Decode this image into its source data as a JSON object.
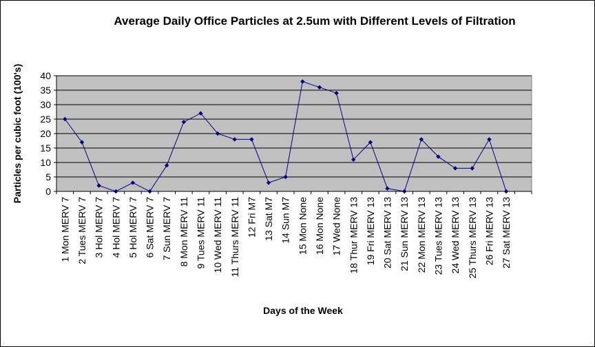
{
  "chart_data": {
    "type": "line",
    "title": "Average Daily Office Particles at 2.5um with Different Levels of Filtration",
    "xlabel": "Days of the Week",
    "ylabel": "Particles per cubic foot (100's)",
    "ylim": [
      0,
      40
    ],
    "yticks": [
      0,
      5,
      10,
      15,
      20,
      25,
      30,
      35,
      40
    ],
    "grid": true,
    "legend": "none",
    "colors": {
      "plot_bg": "#c0c0c0",
      "line": "#000080",
      "grid": "#000000"
    },
    "categories": [
      "1 Mon MERV 7",
      "2 Tues MERV 7",
      "3 Hol MERV 7",
      "4 Hol MERV 7",
      "5 Hol MERV 7",
      "6 Sat MERV 7",
      "7 Sun MERV 7",
      "8 Mon MERV 11",
      "9 Tues MERV 11",
      "10 Wed MERV 11",
      "11 Thurs MERV 11",
      "12 Fri M7",
      "13 Sat M7",
      "14 Sun M7",
      "15 Mon None",
      "16 Mon None",
      "17 Wed None",
      "18 Thur MERV 13",
      "19 Fri MERV 13",
      "20 Sat MERV 13",
      "21 Sun MERV 13",
      "22 Mon MERV 13",
      "23 Tues MERV 13",
      "24 Wed MERV 13",
      "25 Thurs MERV 13",
      "26 Fri MERV 13",
      "27 Sat MERV 13"
    ],
    "series": [
      {
        "values": [
          25,
          17,
          2,
          0,
          3,
          0,
          9,
          24,
          27,
          20,
          18,
          18,
          3,
          5,
          38,
          36,
          34,
          11,
          17,
          1,
          0,
          18,
          12,
          8,
          8,
          18,
          0
        ]
      }
    ]
  }
}
